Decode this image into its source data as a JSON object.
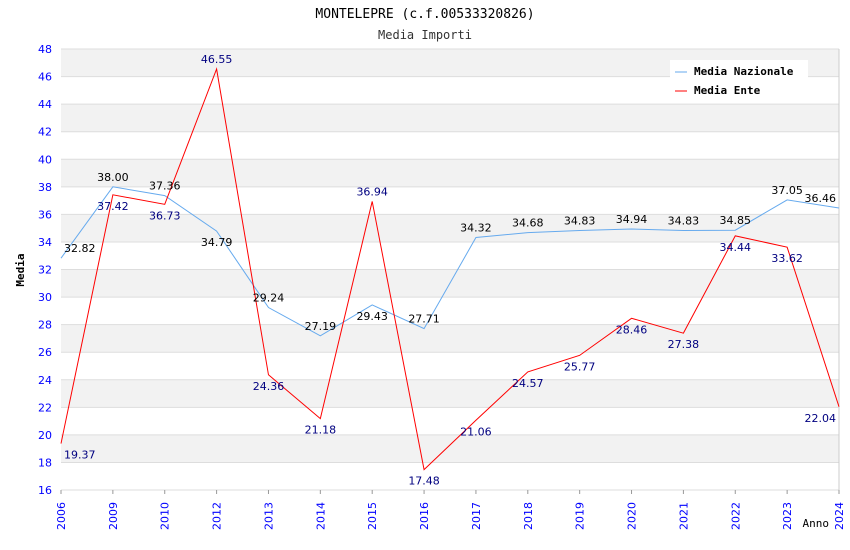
{
  "chart_data": {
    "type": "line",
    "title": "MONTELEPRE (c.f.00533320826)",
    "subtitle": "Media Importi",
    "xlabel": "Anno",
    "ylabel": "Media",
    "ylim": [
      16,
      48
    ],
    "ystep": 2,
    "grid": true,
    "legend_position": "top-right",
    "categories": [
      "2006",
      "2009",
      "2010",
      "2012",
      "2013",
      "2014",
      "2015",
      "2016",
      "2017",
      "2018",
      "2019",
      "2020",
      "2021",
      "2022",
      "2023",
      "2024"
    ],
    "series": [
      {
        "name": "Media Nazionale",
        "color": "#66aaee",
        "label_color": "#000000",
        "values": [
          32.82,
          38.0,
          37.36,
          34.79,
          29.24,
          27.19,
          29.43,
          27.71,
          34.32,
          34.68,
          34.83,
          34.94,
          34.83,
          34.85,
          37.05,
          36.46
        ]
      },
      {
        "name": "Media Ente",
        "color": "#ff0000",
        "label_color": "#000080",
        "values": [
          19.37,
          37.42,
          36.73,
          46.55,
          24.36,
          21.18,
          36.94,
          17.48,
          21.06,
          24.57,
          25.77,
          28.46,
          27.38,
          34.44,
          33.62,
          22.04
        ]
      }
    ]
  }
}
